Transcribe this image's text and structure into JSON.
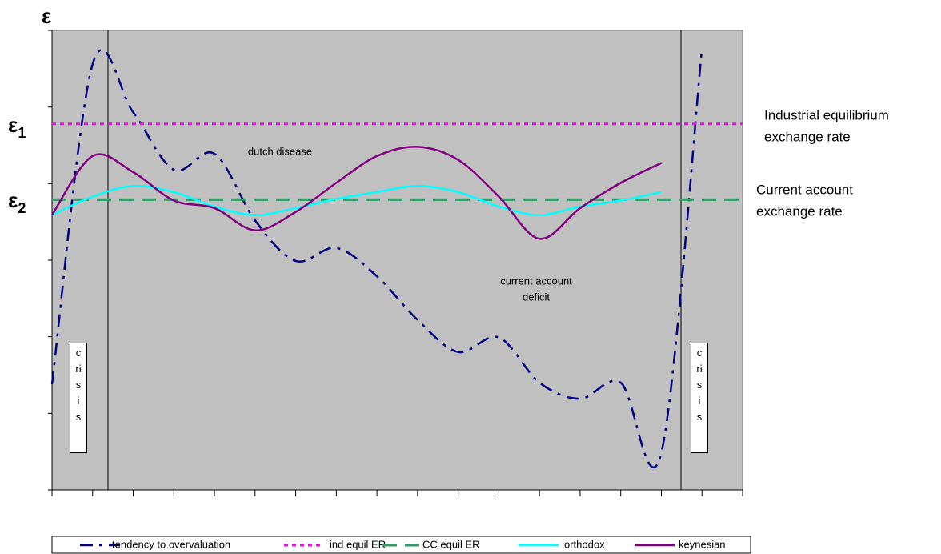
{
  "chart_data": {
    "type": "line",
    "y_label": "ε",
    "level_labels": [
      {
        "symbol": "ε",
        "subscript": "1"
      },
      {
        "symbol": "ε",
        "subscript": "2"
      }
    ],
    "right_labels": [
      [
        "Industrial equilibrium",
        "exchange rate"
      ],
      [
        "Current account",
        "exchange rate"
      ]
    ],
    "annotations": [
      [
        "dutch disease"
      ],
      [
        "current account",
        "deficit"
      ]
    ],
    "crisis_labels": [
      "crisis",
      "crisis"
    ],
    "categories": [
      null,
      null,
      null,
      null,
      null,
      null,
      null,
      null,
      null,
      null,
      null,
      null,
      null,
      null,
      null,
      null,
      null,
      null
    ],
    "ylim": [
      0,
      6
    ],
    "yticks": [
      0,
      1,
      2,
      3,
      4,
      5,
      6
    ],
    "background": "#c0c0c0",
    "series": [
      {
        "name": "tendency to overvaluation",
        "color": "#000080",
        "dash": "dashdot",
        "values": [
          1.38,
          5.56,
          4.93,
          4.18,
          4.39,
          3.52,
          2.99,
          3.16,
          2.79,
          2.22,
          1.8,
          1.99,
          1.4,
          1.19,
          1.4,
          0.49,
          5.77,
          null
        ]
      },
      {
        "name": "ind equil ER",
        "color": "#ff00ff",
        "dash": "dotted",
        "values": [
          4.78,
          4.78,
          4.78,
          4.78,
          4.78,
          4.78,
          4.78,
          4.78,
          4.78,
          4.78,
          4.78,
          4.78,
          4.78,
          4.78,
          4.78,
          4.78,
          4.78,
          4.78
        ]
      },
      {
        "name": "CC equil ER",
        "color": "#339966",
        "dash": "dashed",
        "values": [
          3.79,
          3.79,
          3.79,
          3.79,
          3.79,
          3.79,
          3.79,
          3.79,
          3.79,
          3.79,
          3.79,
          3.79,
          3.79,
          3.79,
          3.79,
          3.79,
          3.79,
          3.79
        ]
      },
      {
        "name": "orthodox",
        "color": "#00ffff",
        "dash": "solid",
        "values": [
          3.59,
          3.83,
          3.97,
          3.89,
          3.7,
          3.59,
          3.68,
          3.8,
          3.89,
          3.97,
          3.89,
          3.7,
          3.59,
          3.7,
          3.78,
          3.89,
          null,
          null
        ]
      },
      {
        "name": "keynesian",
        "color": "#800080",
        "dash": "solid",
        "values": [
          3.59,
          4.36,
          4.15,
          3.78,
          3.68,
          3.39,
          3.63,
          4.01,
          4.36,
          4.48,
          4.31,
          3.83,
          3.28,
          3.68,
          4.01,
          4.27,
          null,
          null
        ]
      }
    ]
  }
}
